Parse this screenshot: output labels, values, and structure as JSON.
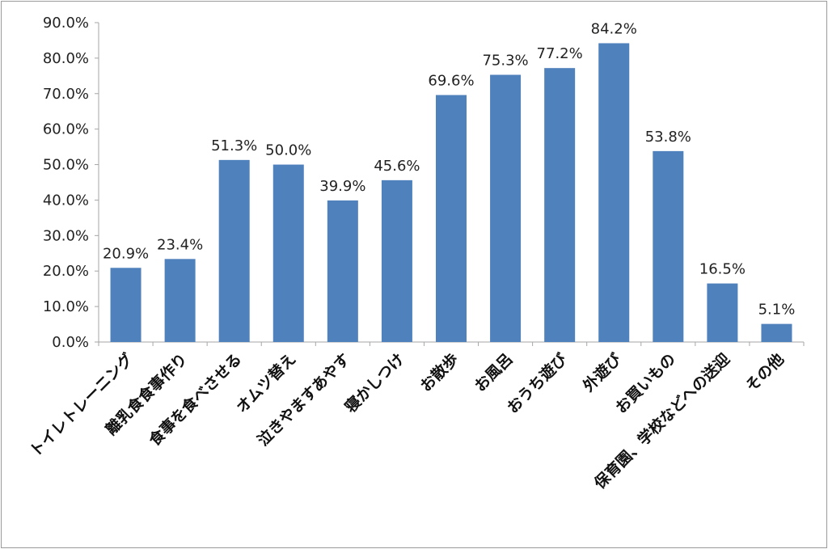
{
  "chart_data": {
    "type": "bar",
    "categories": [
      "トイレトレーニング",
      "離乳食食事作り",
      "食事を食べさせる",
      "オムツ替え",
      "泣きやますあやす",
      "寝かしつけ",
      "お散歩",
      "お風呂",
      "おうち遊び",
      "外遊び",
      "お買いもの",
      "保育園、学校などへの送迎",
      "その他"
    ],
    "values": [
      20.9,
      23.4,
      51.3,
      50.0,
      39.9,
      45.6,
      69.6,
      75.3,
      77.2,
      84.2,
      53.8,
      16.5,
      5.1
    ],
    "data_labels": [
      "20.9%",
      "23.4%",
      "51.3%",
      "50.0%",
      "39.9%",
      "45.6%",
      "69.6%",
      "75.3%",
      "77.2%",
      "84.2%",
      "53.8%",
      "16.5%",
      "5.1%"
    ],
    "y_ticks": [
      0,
      10,
      20,
      30,
      40,
      50,
      60,
      70,
      80,
      90
    ],
    "y_tick_labels": [
      "0.0%",
      "10.0%",
      "20.0%",
      "30.0%",
      "40.0%",
      "50.0%",
      "60.0%",
      "70.0%",
      "80.0%",
      "90.0%"
    ],
    "ylim": [
      0,
      90
    ],
    "grid": false,
    "legend": "none",
    "bar_color": "#4f81bd",
    "axis_color": "#a6a6a6"
  }
}
